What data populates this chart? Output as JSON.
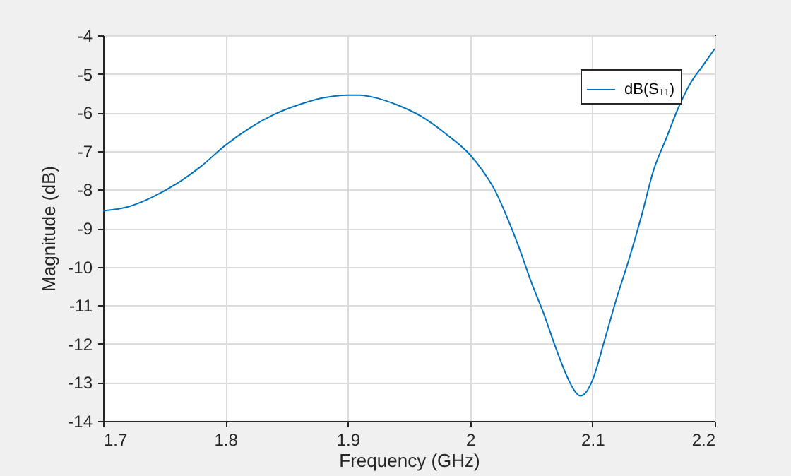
{
  "chart_data": {
    "type": "line",
    "xlabel": "Frequency (GHz)",
    "ylabel": "Magnitude (dB)",
    "x": [
      1.7,
      1.72,
      1.74,
      1.76,
      1.78,
      1.8,
      1.82,
      1.84,
      1.86,
      1.88,
      1.9,
      1.91,
      1.92,
      1.94,
      1.96,
      1.98,
      2.0,
      2.01,
      2.02,
      2.03,
      2.04,
      2.05,
      2.06,
      2.07,
      2.08,
      2.085,
      2.09,
      2.095,
      2.1,
      2.11,
      2.12,
      2.13,
      2.14,
      2.15,
      2.16,
      2.17,
      2.18,
      2.19,
      2.2
    ],
    "series": [
      {
        "name": "dB(S₁₁)",
        "color": "#0072bd",
        "values": [
          -8.55,
          -8.45,
          -8.2,
          -7.85,
          -7.4,
          -6.85,
          -6.4,
          -6.05,
          -5.8,
          -5.62,
          -5.55,
          -5.55,
          -5.6,
          -5.8,
          -6.1,
          -6.55,
          -7.1,
          -7.5,
          -8.0,
          -8.7,
          -9.5,
          -10.4,
          -11.2,
          -12.1,
          -12.9,
          -13.2,
          -13.35,
          -13.25,
          -12.95,
          -11.9,
          -10.8,
          -9.8,
          -8.7,
          -7.5,
          -6.7,
          -5.9,
          -5.25,
          -4.8,
          -4.35
        ]
      }
    ],
    "xlim": [
      1.7,
      2.2
    ],
    "xticks": [
      1.7,
      1.8,
      1.9,
      2,
      2.1,
      2.2
    ],
    "ylim": [
      -14,
      -4
    ],
    "yticks": [
      -14,
      -13,
      -12,
      -11,
      -10,
      -9,
      -8,
      -7,
      -6,
      -5,
      -4
    ],
    "grid": true,
    "legend": "top right"
  }
}
